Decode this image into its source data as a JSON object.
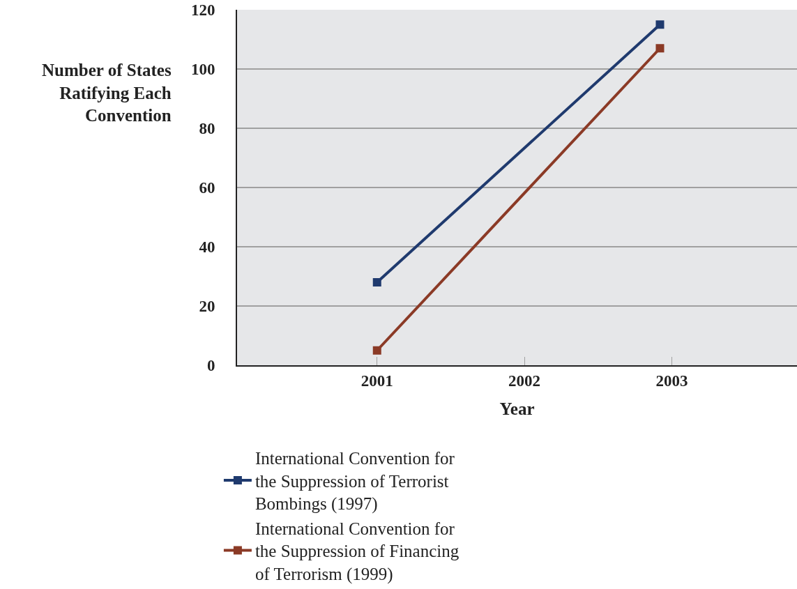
{
  "chart_data": {
    "type": "line",
    "xlabel": "Year",
    "ylabel": "Number of States Ratifying Each Convention",
    "x": [
      2001,
      2002.92
    ],
    "xlim": [
      2000.05,
      2003.85
    ],
    "xticks": [
      2001,
      2002,
      2003
    ],
    "ylim": [
      0,
      120
    ],
    "yticks": [
      0,
      20,
      40,
      60,
      80,
      100,
      120
    ],
    "grid": "y",
    "marker": "square",
    "line_style": "solid",
    "legend": "bottom left",
    "series": [
      {
        "name": "International Convention for the Suppression of Terrorist Bombings (1997)",
        "color": "#1f3a6e",
        "values": [
          28,
          115
        ]
      },
      {
        "name": "International Convention for the Suppression of Financing of Terrorism (1999)",
        "color": "#8b3a26",
        "values": [
          5,
          107
        ]
      }
    ]
  }
}
